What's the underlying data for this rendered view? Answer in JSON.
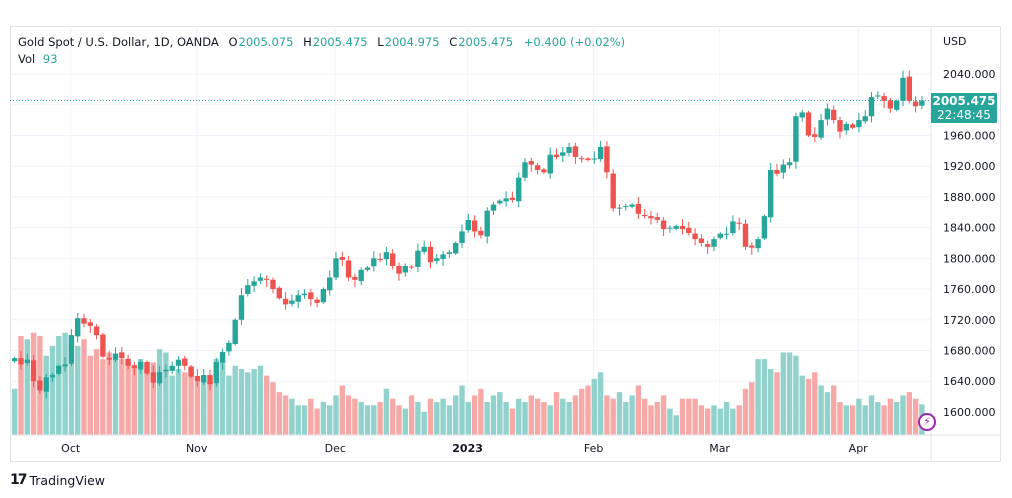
{
  "legend": {
    "symbol": "Gold Spot / U.S. Dollar, 1D, OANDA",
    "open_label": "O",
    "open": "2005.075",
    "high_label": "H",
    "high": "2005.475",
    "low_label": "L",
    "low": "2004.975",
    "close_label": "C",
    "close": "2005.475",
    "change": "+0.400 (+0.02%)",
    "vol_label": "Vol",
    "vol": "93"
  },
  "price_tag": {
    "price": "2005.475",
    "countdown": "22:48:45"
  },
  "brand": {
    "logo": "17",
    "name": "TradingView"
  },
  "colors": {
    "up": "#26a69a",
    "down": "#ef5350",
    "up_vol": "#92d2cc",
    "down_vol": "#f7a9a7"
  },
  "chart_data": {
    "type": "candlestick",
    "title": "Gold Spot / U.S. Dollar, 1D, OANDA",
    "currency": "USD",
    "ylim": [
      1570,
      2070
    ],
    "yticks": [
      "2040.000",
      "1960.000",
      "1920.000",
      "1880.000",
      "1840.000",
      "1800.000",
      "1760.000",
      "1720.000",
      "1680.000",
      "1640.000",
      "1600.000"
    ],
    "ytick_values": [
      2040,
      1960,
      1920,
      1880,
      1840,
      1800,
      1760,
      1720,
      1680,
      1640,
      1600
    ],
    "xticks": [
      {
        "label": "Oct",
        "index": 9
      },
      {
        "label": "Nov",
        "index": 29
      },
      {
        "label": "Dec",
        "index": 51
      },
      {
        "label": "2023",
        "index": 72
      },
      {
        "label": "Feb",
        "index": 92
      },
      {
        "label": "Mar",
        "index": 112
      },
      {
        "label": "Apr",
        "index": 134
      }
    ],
    "current_price": 2005.475,
    "closes": [
      1670,
      1662,
      1668,
      1640,
      1628,
      1645,
      1648,
      1660,
      1662,
      1700,
      1722,
      1715,
      1712,
      1700,
      1672,
      1668,
      1676,
      1670,
      1660,
      1657,
      1665,
      1650,
      1638,
      1652,
      1655,
      1660,
      1668,
      1660,
      1646,
      1640,
      1648,
      1636,
      1665,
      1678,
      1690,
      1720,
      1752,
      1765,
      1770,
      1775,
      1772,
      1760,
      1748,
      1740,
      1745,
      1752,
      1754,
      1747,
      1742,
      1760,
      1775,
      1800,
      1798,
      1775,
      1772,
      1785,
      1788,
      1800,
      1798,
      1808,
      1790,
      1780,
      1790,
      1788,
      1810,
      1815,
      1795,
      1800,
      1805,
      1808,
      1820,
      1835,
      1850,
      1835,
      1830,
      1862,
      1870,
      1875,
      1878,
      1876,
      1905,
      1925,
      1922,
      1915,
      1912,
      1935,
      1932,
      1938,
      1945,
      1932,
      1930,
      1928,
      1930,
      1945,
      1912,
      1865,
      1866,
      1868,
      1870,
      1858,
      1855,
      1852,
      1850,
      1838,
      1840,
      1842,
      1838,
      1833,
      1825,
      1820,
      1815,
      1825,
      1832,
      1832,
      1848,
      1845,
      1815,
      1814,
      1825,
      1855,
      1915,
      1910,
      1922,
      1925,
      1985,
      1990,
      1960,
      1958,
      1980,
      1995,
      1980,
      1965,
      1975,
      1970,
      1980,
      1985,
      2010,
      2012,
      2005,
      1995,
      2005,
      2035,
      2005,
      1998,
      2005.475
    ],
    "volumes": [
      140,
      300,
      290,
      310,
      300,
      240,
      270,
      300,
      310,
      300,
      270,
      290,
      240,
      260,
      230,
      250,
      230,
      230,
      210,
      210,
      230,
      200,
      220,
      260,
      250,
      180,
      200,
      190,
      200,
      170,
      180,
      160,
      230,
      220,
      180,
      210,
      200,
      190,
      200,
      210,
      180,
      160,
      130,
      120,
      110,
      90,
      90,
      110,
      80,
      100,
      90,
      120,
      150,
      120,
      110,
      100,
      90,
      90,
      100,
      140,
      110,
      90,
      80,
      120,
      100,
      70,
      110,
      100,
      110,
      90,
      120,
      150,
      100,
      120,
      140,
      100,
      120,
      130,
      100,
      80,
      110,
      100,
      120,
      110,
      100,
      90,
      130,
      110,
      100,
      120,
      140,
      150,
      170,
      190,
      120,
      110,
      130,
      100,
      120,
      150,
      110,
      90,
      100,
      120,
      80,
      60,
      110,
      110,
      110,
      90,
      80,
      90,
      80,
      100,
      80,
      90,
      140,
      160,
      230,
      230,
      200,
      190,
      250,
      250,
      240,
      180,
      170,
      190,
      150,
      130,
      150,
      100,
      90,
      90,
      110,
      90,
      120,
      100,
      90,
      110,
      100,
      120,
      130,
      110,
      93
    ]
  }
}
